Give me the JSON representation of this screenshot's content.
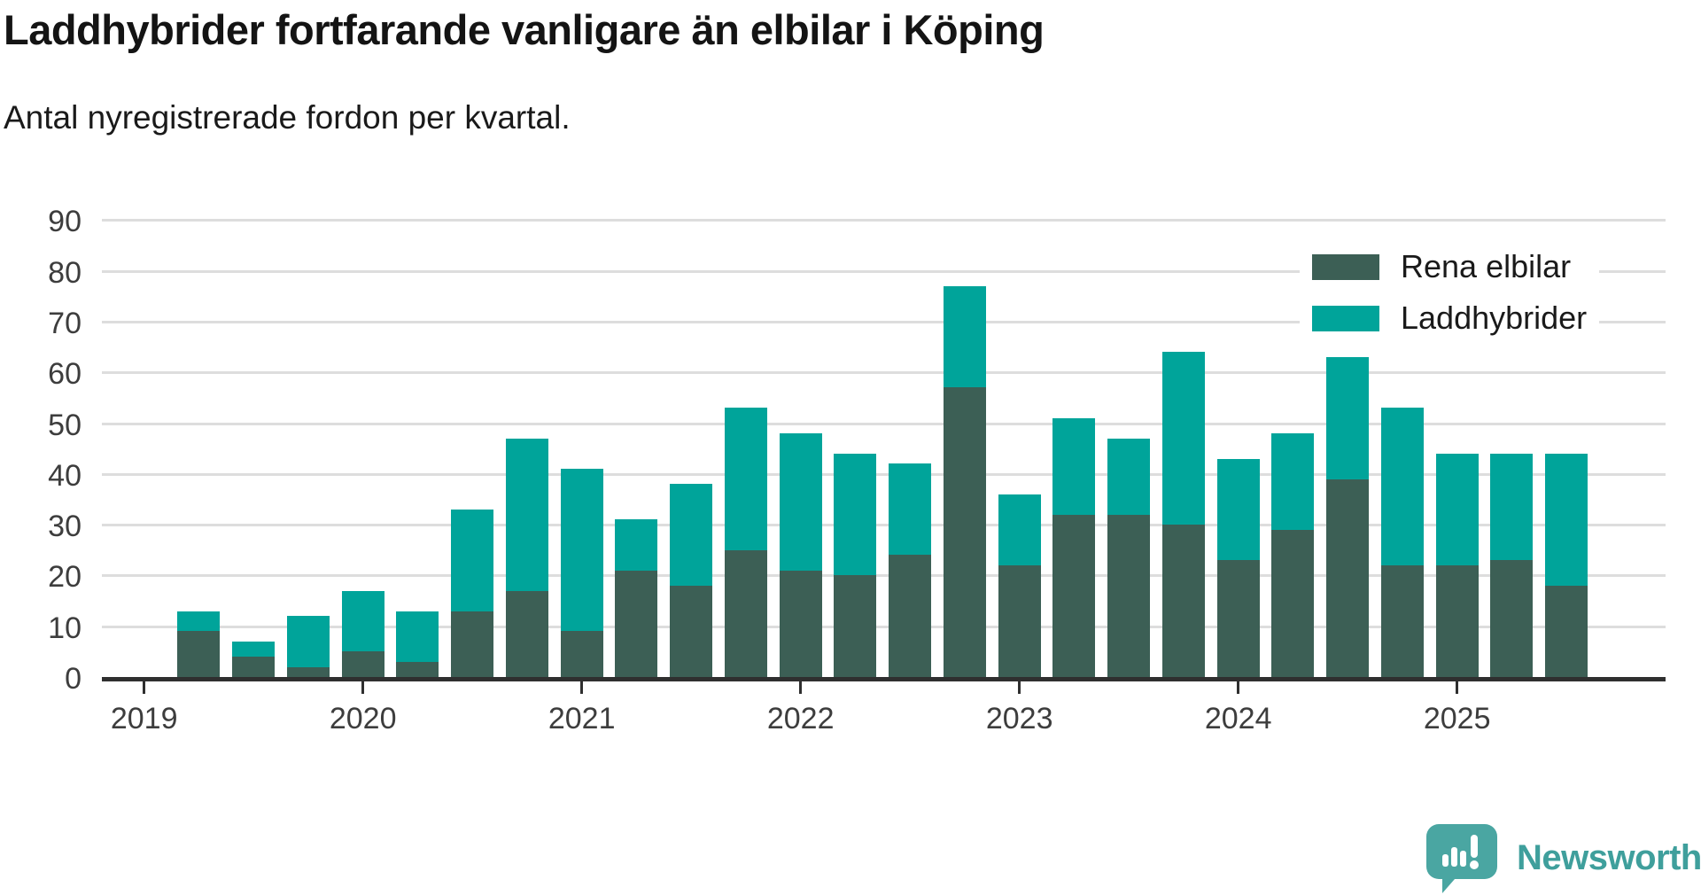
{
  "title": "Laddhybrider fortfarande vanligare än elbilar i Köping",
  "subtitle": "Antal nyregistrerade fordon per kvartal.",
  "legend": {
    "items": [
      {
        "label": "Rena elbilar",
        "color": "#3c5f55"
      },
      {
        "label": "Laddhybrider",
        "color": "#00a49a"
      }
    ]
  },
  "branding": {
    "name": "Newsworthy",
    "text_color": "#3f9f9c",
    "bubble_color": "#4aa6a2"
  },
  "chart_data": {
    "type": "bar",
    "stacked": true,
    "title": "Laddhybrider fortfarande vanligare än elbilar i Köping",
    "subtitle": "Antal nyregistrerade fordon per kvartal.",
    "x": [
      "2019 Q2",
      "2019 Q3",
      "2019 Q4",
      "2020 Q1",
      "2020 Q2",
      "2020 Q3",
      "2020 Q4",
      "2021 Q1",
      "2021 Q2",
      "2021 Q3",
      "2021 Q4",
      "2022 Q1",
      "2022 Q2",
      "2022 Q3",
      "2022 Q4",
      "2023 Q1",
      "2023 Q2",
      "2023 Q3",
      "2023 Q4",
      "2024 Q1",
      "2024 Q2",
      "2024 Q3",
      "2024 Q4",
      "2025 Q1",
      "2025 Q2",
      "2025 Q3"
    ],
    "series": [
      {
        "name": "Rena elbilar",
        "color": "#3c5f55",
        "values": [
          9,
          4,
          2,
          5,
          3,
          13,
          17,
          9,
          21,
          18,
          25,
          21,
          20,
          24,
          57,
          22,
          32,
          32,
          30,
          23,
          29,
          39,
          22,
          22,
          23,
          18
        ]
      },
      {
        "name": "Laddhybrider",
        "color": "#00a49a",
        "values": [
          4,
          3,
          10,
          12,
          10,
          20,
          30,
          32,
          10,
          20,
          28,
          27,
          24,
          18,
          20,
          14,
          19,
          15,
          34,
          20,
          19,
          24,
          31,
          22,
          21,
          26
        ]
      }
    ],
    "totals": [
      13,
      7,
      12,
      17,
      13,
      33,
      47,
      41,
      31,
      38,
      53,
      48,
      44,
      42,
      77,
      36,
      51,
      47,
      64,
      43,
      48,
      63,
      53,
      44,
      44,
      44
    ],
    "ylabel": "",
    "xlabel": "",
    "ylim": [
      0,
      90
    ],
    "yticks": [
      0,
      10,
      20,
      30,
      40,
      50,
      60,
      70,
      80,
      90
    ],
    "xticks_years": [
      "2019",
      "2020",
      "2021",
      "2022",
      "2023",
      "2024",
      "2025"
    ],
    "first_bar_quarter_offset": 1,
    "grid": "horizontal",
    "legend_position": "top-right"
  }
}
